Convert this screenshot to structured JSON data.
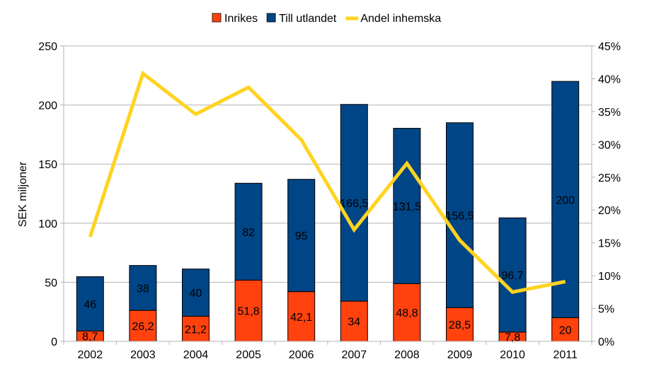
{
  "chart_data": {
    "type": "bar",
    "stacked": true,
    "categories": [
      "2002",
      "2003",
      "2004",
      "2005",
      "2006",
      "2007",
      "2008",
      "2009",
      "2010",
      "2011"
    ],
    "series": [
      {
        "name": "Inrikes",
        "type": "bar",
        "axis": "left",
        "color": "#ff420e",
        "values": [
          8.7,
          26.2,
          21.2,
          51.8,
          42.1,
          34,
          48.8,
          28.5,
          7.8,
          20
        ],
        "labels": [
          "8,7",
          "26,2",
          "21,2",
          "51,8",
          "42,1",
          "34",
          "48,8",
          "28,5",
          "7,8",
          "20"
        ]
      },
      {
        "name": "Till utlandet",
        "type": "bar",
        "axis": "left",
        "color": "#004586",
        "values": [
          46,
          38,
          40,
          82,
          95,
          166.5,
          131.5,
          156.5,
          96.7,
          200
        ],
        "labels": [
          "46",
          "38",
          "40",
          "82",
          "95",
          "166,5",
          "131,5",
          "156,5",
          "96,7",
          "200"
        ]
      },
      {
        "name": "Andel inhemska",
        "type": "line",
        "axis": "right",
        "color": "#ffd320",
        "values": [
          15.9,
          40.8,
          34.6,
          38.7,
          30.7,
          17.0,
          27.1,
          15.4,
          7.5,
          9.1
        ]
      }
    ],
    "ylabel": "SEK miljoner",
    "ylim": [
      0,
      250
    ],
    "yticks": [
      "0",
      "50",
      "100",
      "150",
      "200",
      "250"
    ],
    "y2lim": [
      0,
      45
    ],
    "y2ticks": [
      "0%",
      "5%",
      "10%",
      "15%",
      "20%",
      "25%",
      "30%",
      "35%",
      "40%",
      "45%"
    ],
    "grid": true,
    "legend": "top"
  }
}
